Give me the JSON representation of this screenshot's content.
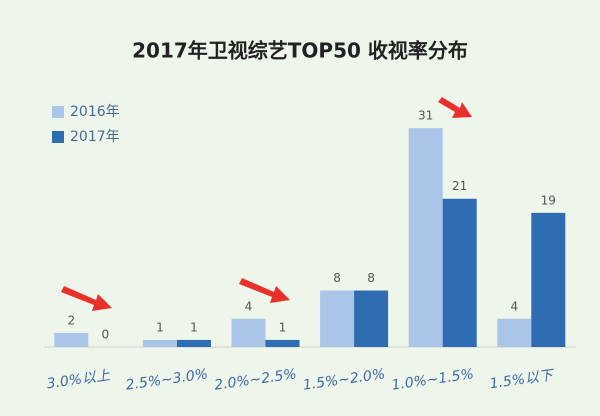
{
  "chart_data": {
    "type": "bar",
    "title": "2017年卫视综艺TOP50 收视率分布",
    "categories": [
      "3.0%以上",
      "2.5%~3.0%",
      "2.0%~2.5%",
      "1.5%~2.0%",
      "1.0%~1.5%",
      "1.5%以下"
    ],
    "series": [
      {
        "name": "2016年",
        "color": "#a9c6e8",
        "values": [
          2,
          1,
          4,
          8,
          31,
          4
        ]
      },
      {
        "name": "2017年",
        "color": "#2f6db3",
        "values": [
          0,
          1,
          1,
          8,
          21,
          19
        ]
      }
    ],
    "legend": "top-left"
  }
}
